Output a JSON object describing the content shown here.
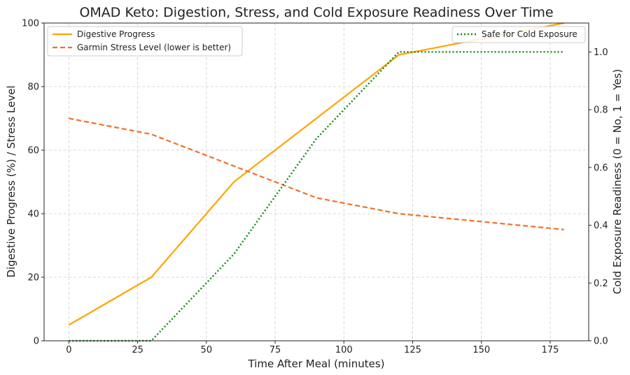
{
  "chart_data": {
    "type": "line",
    "title": "OMAD Keto: Digestion, Stress, and Cold Exposure Readiness Over Time",
    "xlabel": "Time After Meal (minutes)",
    "ylabel": "Digestive Progress (%) / Stress Level",
    "y2label": "Cold Exposure Readiness (0 = No, 1 = Yes)",
    "xlim": [
      -9,
      189
    ],
    "ylim": [
      0,
      100
    ],
    "y2lim": [
      0,
      1.1
    ],
    "xticks": [
      "0",
      "25",
      "50",
      "75",
      "100",
      "125",
      "150",
      "175"
    ],
    "xtick_values": [
      0,
      25,
      50,
      75,
      100,
      125,
      150,
      175
    ],
    "yticks": [
      "0",
      "20",
      "40",
      "60",
      "80",
      "100"
    ],
    "ytick_values": [
      0,
      20,
      40,
      60,
      80,
      100
    ],
    "y2ticks": [
      "0.0",
      "0.2",
      "0.4",
      "0.6",
      "0.8",
      "1.0"
    ],
    "y2tick_values": [
      0,
      0.2,
      0.4,
      0.6,
      0.8,
      1.0
    ],
    "grid": true,
    "x": [
      0,
      30,
      60,
      90,
      120,
      150,
      180
    ],
    "series": [
      {
        "name": "Digestive Progress",
        "axis": "left",
        "style": "solid",
        "color": "#FFA500",
        "values": [
          5,
          20,
          50,
          70,
          90,
          95,
          100
        ]
      },
      {
        "name": "Garmin Stress Level (lower is better)",
        "axis": "left",
        "style": "dashed",
        "color": "#F0702A",
        "values": [
          70,
          65,
          55,
          45,
          40,
          37.5,
          35
        ]
      },
      {
        "name": "Safe for Cold Exposure",
        "axis": "right",
        "style": "dotted",
        "color": "#118811",
        "values": [
          0,
          0,
          0.3,
          0.7,
          1,
          1,
          1
        ]
      }
    ],
    "legend_left": [
      "Digestive Progress",
      "Garmin Stress Level (lower is better)"
    ],
    "legend_right": [
      "Safe for Cold Exposure"
    ],
    "legend_left_position": "upper-left",
    "legend_right_position": "upper-right"
  }
}
